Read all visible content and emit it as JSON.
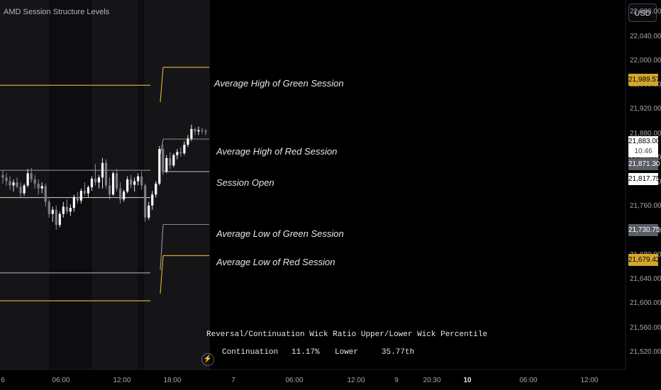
{
  "indicator_title": "AMD Session Structure Levels",
  "currency_button": "USD",
  "level_labels": {
    "avg_high_green": "Average High of Green Session",
    "avg_high_red": "Average High of Red Session",
    "session_open": "Session Open",
    "avg_low_green": "Average Low of Green Session",
    "avg_low_red": "Average Low of Red Session"
  },
  "price_axis": [
    "22,080.00",
    "22,040.00",
    "22,000.00",
    "21,960.00",
    "21,920.00",
    "21,880.00",
    "21,840.00",
    "21,800.00",
    "21,760.00",
    "21,720.00",
    "21,680.00",
    "21,640.00",
    "21,600.00",
    "21,560.00",
    "21,520.00"
  ],
  "price_tags": {
    "avg_high_green": "21,989.57",
    "last_price": "21,883.00",
    "countdown": "10:46",
    "avg_high_red": "21,871.30",
    "session_open": "21,817.75",
    "avg_low_green": "21,730.75",
    "avg_low_red": "21,679.42"
  },
  "time_axis": [
    {
      "label": "6",
      "bold": false
    },
    {
      "label": "06:00",
      "bold": false
    },
    {
      "label": "12:00",
      "bold": false
    },
    {
      "label": "18:00",
      "bold": false
    },
    {
      "label": "7",
      "bold": false
    },
    {
      "label": "06:00",
      "bold": false
    },
    {
      "label": "12:00",
      "bold": false
    },
    {
      "label": "9",
      "bold": false
    },
    {
      "label": "20:30",
      "bold": false
    },
    {
      "label": "10",
      "bold": true
    },
    {
      "label": "06:00",
      "bold": false
    },
    {
      "label": "12:00",
      "bold": false
    }
  ],
  "stats_table": {
    "headers": [
      "Reversal/Continuation",
      "Wick Ratio",
      "Upper/Lower Wick",
      "Percentile"
    ],
    "values": [
      "Continuation",
      "11.17%",
      "Lower",
      "35.77th"
    ]
  },
  "colors": {
    "gold": "#d4a72c",
    "gray": "#8a8d94",
    "white": "#ffffff",
    "background": "#000000"
  },
  "chart_data": {
    "type": "candlestick",
    "series": [
      {
        "name": "",
        "ohlc": [
          [
            21812,
            21820,
            21798,
            21808
          ],
          [
            21808,
            21815,
            21795,
            21802
          ],
          [
            21802,
            21810,
            21788,
            21795
          ],
          [
            21795,
            21805,
            21785,
            21800
          ],
          [
            21800,
            21808,
            21790,
            21793
          ],
          [
            21793,
            21800,
            21776,
            21782
          ],
          [
            21782,
            21798,
            21778,
            21795
          ],
          [
            21795,
            21822,
            21792,
            21815
          ],
          [
            21815,
            21824,
            21800,
            21805
          ],
          [
            21805,
            21812,
            21790,
            21798
          ],
          [
            21798,
            21805,
            21780,
            21790
          ],
          [
            21790,
            21800,
            21782,
            21794
          ],
          [
            21794,
            21798,
            21760,
            21768
          ],
          [
            21768,
            21772,
            21742,
            21748
          ],
          [
            21748,
            21760,
            21735,
            21755
          ],
          [
            21755,
            21762,
            21722,
            21730
          ],
          [
            21730,
            21752,
            21726,
            21748
          ],
          [
            21748,
            21768,
            21742,
            21760
          ],
          [
            21760,
            21772,
            21748,
            21752
          ],
          [
            21752,
            21764,
            21745,
            21758
          ],
          [
            21758,
            21780,
            21752,
            21776
          ],
          [
            21776,
            21784,
            21765,
            21770
          ],
          [
            21770,
            21790,
            21765,
            21786
          ],
          [
            21786,
            21800,
            21778,
            21782
          ],
          [
            21782,
            21795,
            21775,
            21792
          ],
          [
            21792,
            21810,
            21786,
            21806
          ],
          [
            21806,
            21830,
            21795,
            21800
          ],
          [
            21800,
            21812,
            21790,
            21808
          ],
          [
            21808,
            21840,
            21790,
            21832
          ],
          [
            21832,
            21838,
            21790,
            21795
          ],
          [
            21795,
            21808,
            21772,
            21780
          ],
          [
            21780,
            21818,
            21778,
            21815
          ],
          [
            21815,
            21822,
            21785,
            21790
          ],
          [
            21790,
            21800,
            21765,
            21772
          ],
          [
            21772,
            21788,
            21768,
            21785
          ],
          [
            21785,
            21810,
            21782,
            21805
          ],
          [
            21805,
            21812,
            21790,
            21796
          ],
          [
            21796,
            21808,
            21785,
            21802
          ],
          [
            21802,
            21815,
            21795,
            21810
          ],
          [
            21810,
            21818,
            21788,
            21795
          ],
          [
            21795,
            21798,
            21735,
            21742
          ],
          [
            21742,
            21768,
            21738,
            21762
          ],
          [
            21762,
            21786,
            21755,
            21780
          ],
          [
            21780,
            21802,
            21775,
            21798
          ],
          [
            21798,
            21860,
            21795,
            21855
          ],
          [
            21855,
            21862,
            21812,
            21818
          ],
          [
            21818,
            21845,
            21815,
            21840
          ],
          [
            21840,
            21850,
            21822,
            21828
          ],
          [
            21828,
            21848,
            21825,
            21845
          ],
          [
            21845,
            21855,
            21838,
            21850
          ],
          [
            21850,
            21858,
            21842,
            21848
          ],
          [
            21848,
            21868,
            21845,
            21862
          ],
          [
            21862,
            21878,
            21858,
            21872
          ],
          [
            21872,
            21895,
            21868,
            21888
          ],
          [
            21888,
            21890,
            21878,
            21884
          ],
          [
            21884,
            21892,
            21878,
            21886
          ],
          [
            21886,
            21890,
            21880,
            21885
          ],
          [
            21885,
            21888,
            21878,
            21883
          ]
        ]
      }
    ],
    "levels": [
      {
        "label": "Average High of Green Session",
        "value": 21989.57
      },
      {
        "label": "Average High of Red Session",
        "value": 21871.3
      },
      {
        "label": "Session Open",
        "value": 21817.75
      },
      {
        "label": "Average Low of Green Session",
        "value": 21730.75
      },
      {
        "label": "Average Low of Red Session",
        "value": 21679.42
      }
    ],
    "previous_levels": {
      "avg_high_green": 21960,
      "session_open_high": 21820,
      "session_open_low": 21775,
      "avg_low_green": 21651,
      "avg_low_red": 21605
    },
    "ylim": [
      21500,
      22100
    ]
  }
}
